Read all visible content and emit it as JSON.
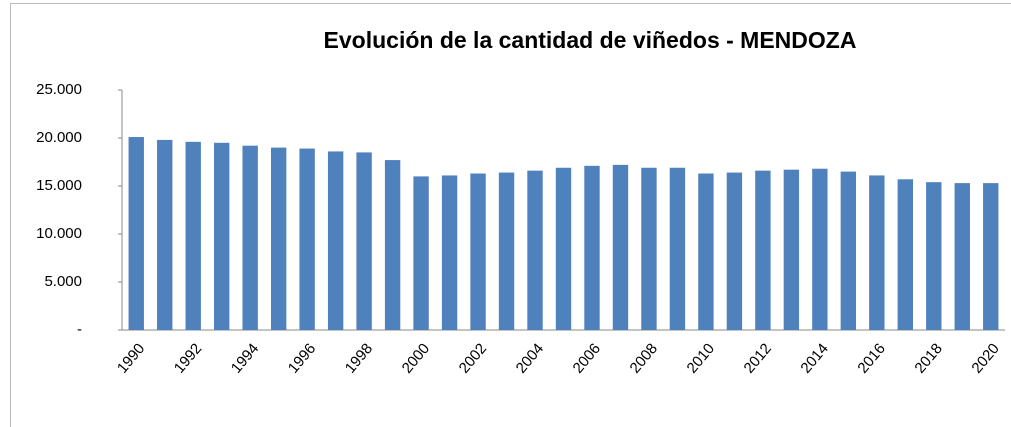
{
  "chart_data": {
    "type": "bar",
    "title": "Evolución de la cantidad de viñedos - MENDOZA",
    "categories": [
      "1990",
      null,
      "1992",
      null,
      "1994",
      null,
      "1996",
      null,
      "1998",
      null,
      "2000",
      null,
      "2002",
      null,
      "2004",
      null,
      "2006",
      null,
      "2008",
      null,
      "2010",
      null,
      "2012",
      null,
      "2014",
      null,
      "2016",
      null,
      "2018",
      null,
      "2020"
    ],
    "values": [
      20100,
      19800,
      19600,
      19500,
      19200,
      19000,
      18900,
      18600,
      18500,
      17700,
      16000,
      16100,
      16300,
      16400,
      16600,
      16900,
      17100,
      17200,
      16900,
      16900,
      16300,
      16400,
      16600,
      16700,
      16800,
      16500,
      16100,
      15700,
      15400,
      15300,
      15300
    ],
    "color": "#4f81bd",
    "ylim": [
      0,
      25000
    ],
    "yticks": [
      {
        "value": 0,
        "label": "-"
      },
      {
        "value": 5000,
        "label": "5.000"
      },
      {
        "value": 10000,
        "label": "10.000"
      },
      {
        "value": 15000,
        "label": "15.000"
      },
      {
        "value": 20000,
        "label": "20.000"
      },
      {
        "value": 25000,
        "label": "25.000"
      }
    ],
    "grid": false
  }
}
